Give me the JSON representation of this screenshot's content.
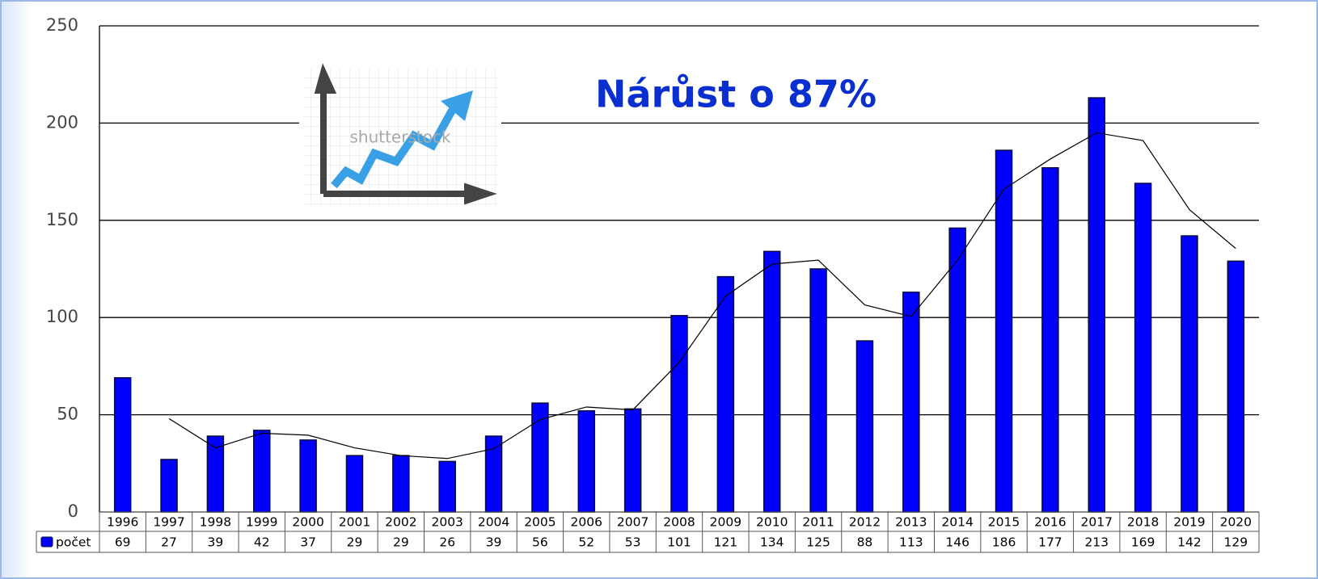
{
  "chart_data": {
    "type": "bar",
    "annotation": "Nárůst o 87%",
    "image_watermark": "shutterstock",
    "categories": [
      "1996",
      "1997",
      "1998",
      "1999",
      "2000",
      "2001",
      "2002",
      "2003",
      "2004",
      "2005",
      "2006",
      "2007",
      "2008",
      "2009",
      "2010",
      "2011",
      "2012",
      "2013",
      "2014",
      "2015",
      "2016",
      "2017",
      "2018",
      "2019",
      "2020"
    ],
    "series": [
      {
        "name": "počet",
        "color": "#0000ff",
        "values": [
          69,
          27,
          39,
          42,
          37,
          29,
          29,
          26,
          39,
          56,
          52,
          53,
          101,
          121,
          134,
          125,
          88,
          113,
          146,
          186,
          177,
          213,
          169,
          142,
          129
        ]
      },
      {
        "type": "line",
        "color": "#000000",
        "values": [
          null,
          48,
          33,
          40.5,
          39.5,
          33,
          29,
          27.5,
          32.5,
          47.5,
          54,
          52.5,
          77,
          111,
          127.5,
          129.5,
          106.5,
          100.5,
          129.5,
          166,
          181.5,
          195,
          191,
          155.5,
          135.5
        ]
      }
    ],
    "ylim": [
      0,
      250
    ],
    "yticks": [
      0,
      50,
      100,
      150,
      200,
      250
    ],
    "grid": true,
    "data_table": true
  }
}
